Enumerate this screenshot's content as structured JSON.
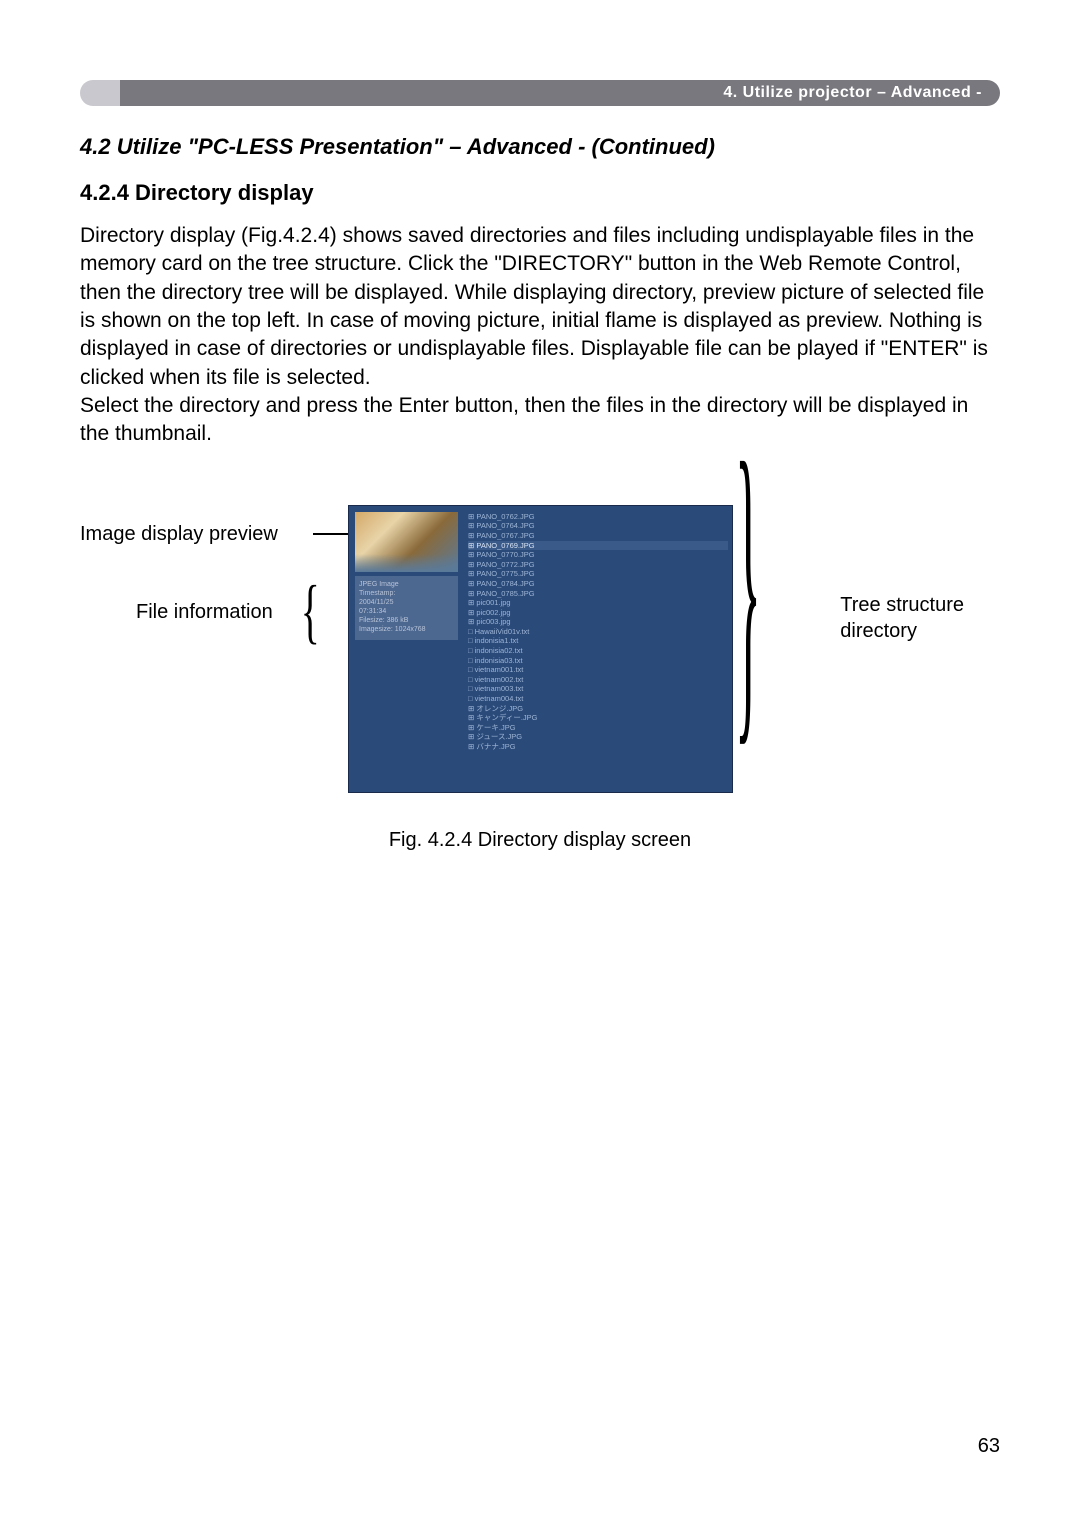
{
  "banner": {
    "text": "4. Utilize projector – Advanced -"
  },
  "section_title": "4.2 Utilize \"PC-LESS Presentation\" – Advanced - (Continued)",
  "subsection_title": "4.2.4 Directory display",
  "body_text": "Directory display (Fig.4.2.4) shows saved directories and files including undisplayable files in the memory card on the tree structure. Click the \"DIRECTORY\" button in the Web Remote Control, then the directory tree will be displayed. While displaying directory, preview picture of selected file is shown on the top left. In case of moving picture, initial flame is displayed as preview. Nothing is displayed in case of directories or undisplayable files. Displayable file can be played if \"ENTER\" is clicked when its file is selected.\nSelect the directory and press the Enter button, then the files in the directory will be displayed in the thumbnail.",
  "labels": {
    "image_preview": "Image display preview",
    "file_info": "File information",
    "tree_structure": "Tree structure\ndirectory"
  },
  "screenshot": {
    "file_info": {
      "line1": "JPEG Image",
      "line2": "Timestamp:",
      "line3": "  2004/11/25",
      "line4": "  07:31:34",
      "line5": "Filesize: 386 kB",
      "line6": "Imagesize: 1024x768"
    },
    "tree": [
      "⊞  PANO_0762.JPG",
      "⊞  PANO_0764.JPG",
      "⊞  PANO_0767.JPG",
      "⊞  PANO_0769.JPG",
      "⊞  PANO_0770.JPG",
      "⊞  PANO_0772.JPG",
      "⊞  PANO_0775.JPG",
      "⊞  PANO_0784.JPG",
      "⊞  PANO_0785.JPG",
      "⊞  pic001.jpg",
      "⊞  pic002.jpg",
      "⊞  pic003.jpg",
      "□  HawaiiVid01v.txt",
      "□  indonisia1.txt",
      "□  indonisia02.txt",
      "□  indonisia03.txt",
      "□  vietnam001.txt",
      "□  vietnam002.txt",
      "□  vietnam003.txt",
      "□  vietnam004.txt",
      "⊞  オレンジ.JPG",
      "⊞  キャンディー.JPG",
      "⊞  ケーキ.JPG",
      "⊞  ジュース.JPG",
      "⊞  バナナ.JPG"
    ],
    "selected_index": 3
  },
  "caption": "Fig. 4.2.4 Directory display screen",
  "page_number": "63"
}
